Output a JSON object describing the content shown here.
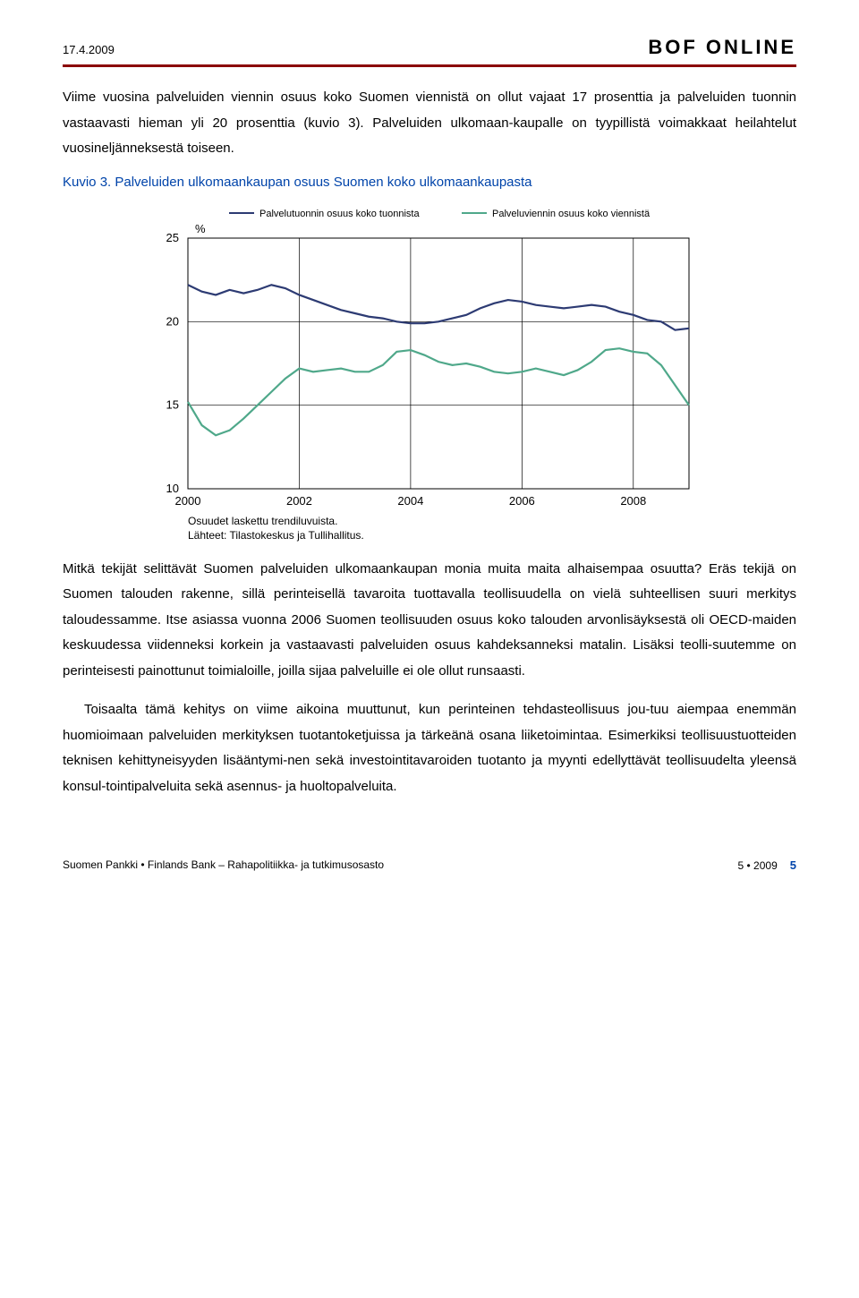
{
  "header": {
    "date": "17.4.2009",
    "title": "BOF ONLINE"
  },
  "para1": "Viime vuosina palveluiden viennin osuus koko Suomen viennistä on ollut vajaat 17 prosenttia ja palveluiden tuonnin vastaavasti hieman yli 20 prosenttia (kuvio 3). Palveluiden ulkomaan-kaupalle on tyypillistä voimakkaat heilahtelut vuosineljänneksestä toiseen.",
  "fig_label": "Kuvio 3. Palveluiden ulkomaankaupan osuus Suomen koko ulkomaankaupasta",
  "chart": {
    "legend": {
      "series1": "Palvelutuonnin osuus koko tuonnista",
      "series2": "Palveluviennin osuus koko viennistä"
    },
    "y_axis_label": "%",
    "y_ticks": [
      "25",
      "20",
      "15",
      "10"
    ],
    "x_ticks": [
      "2000",
      "2002",
      "2004",
      "2006",
      "2008"
    ],
    "footnote1": "Osuudet laskettu trendiluvuista.",
    "footnote2": "Lähteet: Tilastokeskus ja Tullihallitus.",
    "colors": {
      "series1": "#2d3b73",
      "series2": "#4fa88a",
      "border": "#000000",
      "grid": "#000000",
      "bg": "#ffffff"
    },
    "ylim": [
      10,
      25
    ],
    "xlim": [
      2000,
      2009
    ],
    "series1_data": [
      [
        2000.0,
        22.2
      ],
      [
        2000.25,
        21.8
      ],
      [
        2000.5,
        21.6
      ],
      [
        2000.75,
        21.9
      ],
      [
        2001.0,
        21.7
      ],
      [
        2001.25,
        21.9
      ],
      [
        2001.5,
        22.2
      ],
      [
        2001.75,
        22.0
      ],
      [
        2002.0,
        21.6
      ],
      [
        2002.25,
        21.3
      ],
      [
        2002.5,
        21.0
      ],
      [
        2002.75,
        20.7
      ],
      [
        2003.0,
        20.5
      ],
      [
        2003.25,
        20.3
      ],
      [
        2003.5,
        20.2
      ],
      [
        2003.75,
        20.0
      ],
      [
        2004.0,
        19.9
      ],
      [
        2004.25,
        19.9
      ],
      [
        2004.5,
        20.0
      ],
      [
        2004.75,
        20.2
      ],
      [
        2005.0,
        20.4
      ],
      [
        2005.25,
        20.8
      ],
      [
        2005.5,
        21.1
      ],
      [
        2005.75,
        21.3
      ],
      [
        2006.0,
        21.2
      ],
      [
        2006.25,
        21.0
      ],
      [
        2006.5,
        20.9
      ],
      [
        2006.75,
        20.8
      ],
      [
        2007.0,
        20.9
      ],
      [
        2007.25,
        21.0
      ],
      [
        2007.5,
        20.9
      ],
      [
        2007.75,
        20.6
      ],
      [
        2008.0,
        20.4
      ],
      [
        2008.25,
        20.1
      ],
      [
        2008.5,
        20.0
      ],
      [
        2008.75,
        19.5
      ],
      [
        2009.0,
        19.6
      ]
    ],
    "series2_data": [
      [
        2000.0,
        15.2
      ],
      [
        2000.25,
        13.8
      ],
      [
        2000.5,
        13.2
      ],
      [
        2000.75,
        13.5
      ],
      [
        2001.0,
        14.2
      ],
      [
        2001.25,
        15.0
      ],
      [
        2001.5,
        15.8
      ],
      [
        2001.75,
        16.6
      ],
      [
        2002.0,
        17.2
      ],
      [
        2002.25,
        17.0
      ],
      [
        2002.5,
        17.1
      ],
      [
        2002.75,
        17.2
      ],
      [
        2003.0,
        17.0
      ],
      [
        2003.25,
        17.0
      ],
      [
        2003.5,
        17.4
      ],
      [
        2003.75,
        18.2
      ],
      [
        2004.0,
        18.3
      ],
      [
        2004.25,
        18.0
      ],
      [
        2004.5,
        17.6
      ],
      [
        2004.75,
        17.4
      ],
      [
        2005.0,
        17.5
      ],
      [
        2005.25,
        17.3
      ],
      [
        2005.5,
        17.0
      ],
      [
        2005.75,
        16.9
      ],
      [
        2006.0,
        17.0
      ],
      [
        2006.25,
        17.2
      ],
      [
        2006.5,
        17.0
      ],
      [
        2006.75,
        16.8
      ],
      [
        2007.0,
        17.1
      ],
      [
        2007.25,
        17.6
      ],
      [
        2007.5,
        18.3
      ],
      [
        2007.75,
        18.4
      ],
      [
        2008.0,
        18.2
      ],
      [
        2008.25,
        18.1
      ],
      [
        2008.5,
        17.4
      ],
      [
        2008.75,
        16.2
      ],
      [
        2009.0,
        15.0
      ]
    ]
  },
  "para2": "Mitkä tekijät selittävät Suomen palveluiden ulkomaankaupan monia muita maita alhaisempaa osuutta? Eräs tekijä on Suomen talouden rakenne, sillä perinteisellä tavaroita tuottavalla teollisuudella on vielä suhteellisen suuri merkitys taloudessamme. Itse asiassa vuonna 2006 Suomen teollisuuden osuus koko talouden arvonlisäyksestä oli OECD-maiden keskuudessa viidenneksi korkein ja vastaavasti palveluiden osuus kahdeksanneksi matalin. Lisäksi teolli-suutemme on perinteisesti painottunut toimialoille, joilla sijaa palveluille ei ole ollut runsaasti.",
  "para3": "Toisaalta tämä kehitys on viime aikoina muuttunut, kun perinteinen tehdasteollisuus jou-tuu aiempaa enemmän huomioimaan palveluiden merkityksen tuotantoketjuissa ja tärkeänä osana liiketoimintaa. Esimerkiksi teollisuustuotteiden teknisen kehittyneisyyden lisääntymi-nen sekä investointitavaroiden tuotanto ja myynti edellyttävät teollisuudelta yleensä konsul-tointipalveluita sekä asennus- ja huoltopalveluita.",
  "footer": {
    "left": "Suomen Pankki • Finlands Bank – Rahapolitiikka- ja tutkimusosasto",
    "issue": "5 • 2009",
    "page": "5"
  }
}
